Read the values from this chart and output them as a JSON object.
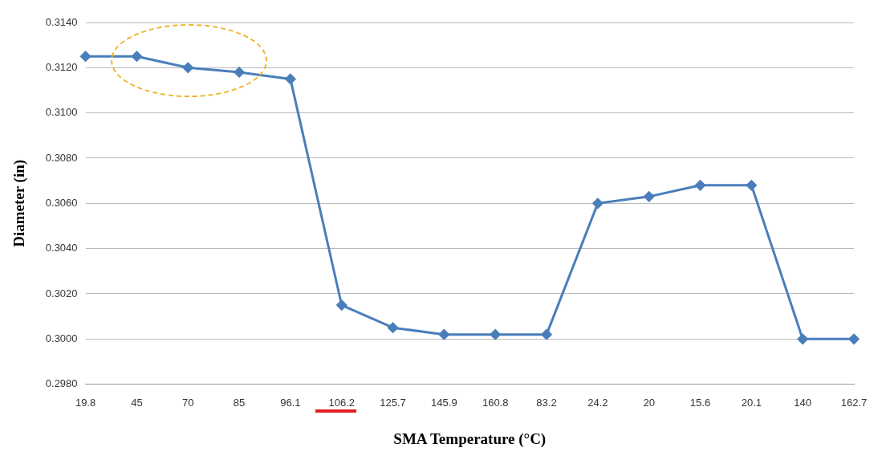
{
  "chart_data": {
    "type": "line",
    "xlabel": "SMA Temperature (°C)",
    "ylabel": "Diameter (in)",
    "categories": [
      "19.8",
      "45",
      "70",
      "85",
      "96.1",
      "106.2",
      "125.7",
      "145.9",
      "160.8",
      "83.2",
      "24.2",
      "20",
      "15.6",
      "20.1",
      "140",
      "162.7"
    ],
    "series": [
      {
        "color": "#4a7ebb",
        "values": [
          0.3125,
          0.3125,
          0.312,
          0.3118,
          0.3115,
          0.3015,
          0.3005,
          0.3002,
          0.3002,
          0.3002,
          0.306,
          0.3063,
          0.3068,
          0.3068,
          0.3,
          0.3
        ]
      }
    ],
    "ylim": [
      0.298,
      0.314
    ],
    "yticks": [
      {
        "value": 0.298,
        "label": "0.2980"
      },
      {
        "value": 0.3,
        "label": "0.3000"
      },
      {
        "value": 0.302,
        "label": "0.3020"
      },
      {
        "value": 0.304,
        "label": "0.3040"
      },
      {
        "value": 0.306,
        "label": "0.3060"
      },
      {
        "value": 0.308,
        "label": "0.3080"
      },
      {
        "value": 0.31,
        "label": "0.3100"
      },
      {
        "value": 0.312,
        "label": "0.3120"
      },
      {
        "value": 0.314,
        "label": "0.3140"
      }
    ],
    "grid": "y",
    "legend": false,
    "marker": "diamond",
    "line_style": "solid"
  }
}
